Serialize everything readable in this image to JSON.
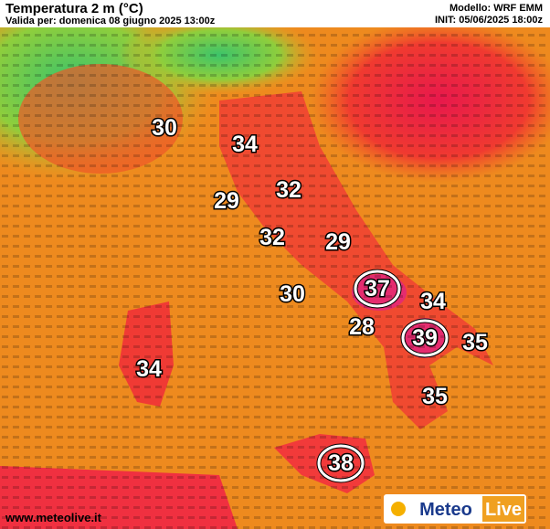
{
  "header": {
    "title": "Temperatura 2 m (°C)",
    "valid": "Valida per: domenica 08 giugno 2025 13:00z",
    "model": "Modello: WRF EMM",
    "init": "INIT: 05/06/2025 18:00z"
  },
  "map": {
    "temperatures": [
      30,
      34,
      29,
      32,
      32,
      29,
      37,
      34,
      30,
      28,
      39,
      35,
      34,
      35,
      38
    ],
    "circled": [
      false,
      false,
      false,
      false,
      false,
      false,
      true,
      false,
      false,
      false,
      true,
      false,
      false,
      false,
      true
    ]
  },
  "footer": {
    "site": "www.meteolive.it",
    "logo_left": "Meteo",
    "logo_right": "Live"
  }
}
